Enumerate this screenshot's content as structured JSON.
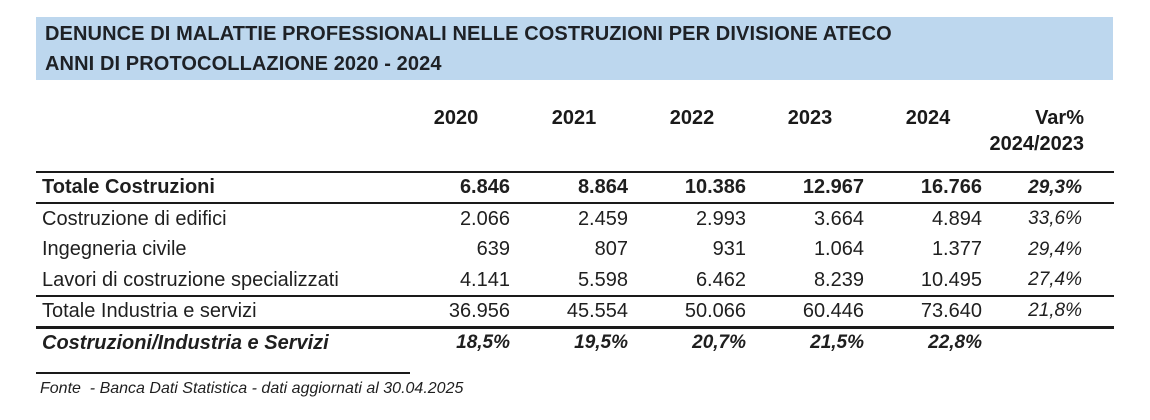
{
  "banner": {
    "line1": "DENUNCE DI MALATTIE PROFESSIONALI NELLE COSTRUZIONI PER DIVISIONE ATECO",
    "line2": "ANNI DI PROTOCOLLAZIONE 2020 - 2024",
    "background_color": "#BDD7EE",
    "text_color": "#1E2126"
  },
  "table": {
    "columns": [
      "2020",
      "2021",
      "2022",
      "2023",
      "2024"
    ],
    "var_header": {
      "line1": "Var%",
      "line2": "2024/2023"
    },
    "rows": [
      {
        "label": "Totale Costruzioni",
        "values": [
          "6.846",
          "8.864",
          "10.386",
          "12.967",
          "16.766"
        ],
        "var": "29,3%"
      },
      {
        "label": "Costruzione di edifici",
        "values": [
          "2.066",
          "2.459",
          "2.993",
          "3.664",
          "4.894"
        ],
        "var": "33,6%"
      },
      {
        "label": "Ingegneria civile",
        "values": [
          "639",
          "807",
          "931",
          "1.064",
          "1.377"
        ],
        "var": "29,4%"
      },
      {
        "label": "Lavori di costruzione specializzati",
        "values": [
          "4.141",
          "5.598",
          "6.462",
          "8.239",
          "10.495"
        ],
        "var": "27,4%"
      },
      {
        "label": "Totale Industria e servizi",
        "values": [
          "36.956",
          "45.554",
          "50.066",
          "60.446",
          "73.640"
        ],
        "var": "21,8%"
      },
      {
        "label": "Costruzioni/Industria e Servizi",
        "values": [
          "18,5%",
          "19,5%",
          "20,7%",
          "21,5%",
          "22,8%"
        ],
        "var": ""
      }
    ]
  },
  "footer": {
    "source": "Fonte  - Banca Dati Statistica - dati aggiornati al 30.04.2025"
  }
}
